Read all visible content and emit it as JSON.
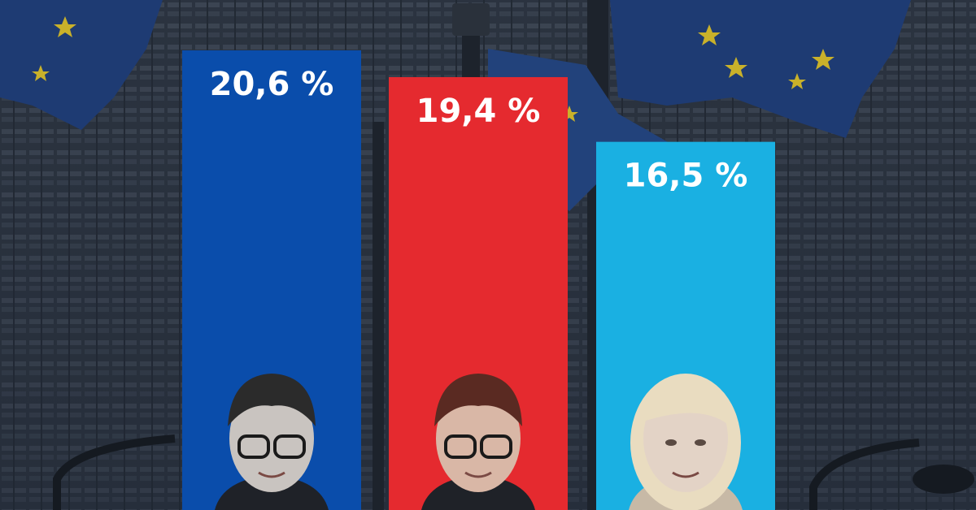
{
  "chart_data": {
    "type": "bar",
    "categories": [
      "",
      "",
      ""
    ],
    "values": [
      20.6,
      19.4,
      16.5
    ],
    "labels": [
      "20,6 %",
      "19,4 %",
      "16,5 %"
    ],
    "colors": [
      "#0a4dab",
      "#e52a2f",
      "#1ab0e2"
    ],
    "title": "",
    "xlabel": "",
    "ylabel": "",
    "grid": false,
    "legend": "none"
  },
  "icons": {
    "background": "eu-flags-building-image",
    "portraits": [
      "person-portrait",
      "person-portrait",
      "person-portrait"
    ]
  }
}
